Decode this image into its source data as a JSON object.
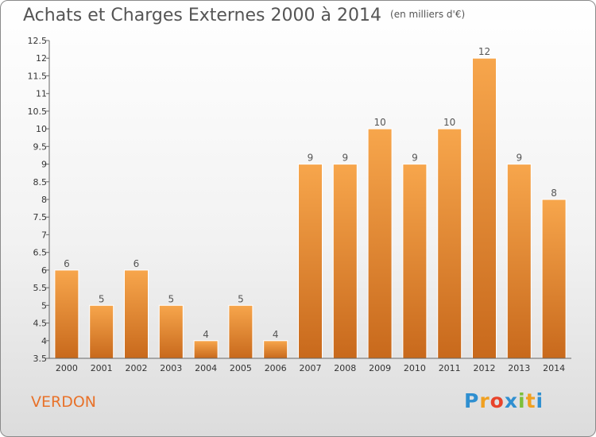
{
  "title": "Achats et Charges Externes 2000 à 2014",
  "unit_note": "(en milliers d'€)",
  "commune": "VERDON",
  "logo": {
    "letters": [
      "P",
      "r",
      "o",
      "x",
      "i",
      "t",
      "i"
    ],
    "colors": [
      "#2f8fd0",
      "#f0a020",
      "#e8432a",
      "#2f8fd0",
      "#7cbf3a",
      "#f0a020",
      "#2f8fd0"
    ]
  },
  "colors": {
    "bar_light": "#f7a64c",
    "bar_dark": "#c8691c",
    "text": "#555555",
    "accent": "#e8722a"
  },
  "chart_data": {
    "type": "bar",
    "categories": [
      "2000",
      "2001",
      "2002",
      "2003",
      "2004",
      "2005",
      "2006",
      "2007",
      "2008",
      "2009",
      "2010",
      "2011",
      "2012",
      "2013",
      "2014"
    ],
    "values": [
      6,
      5,
      6,
      5,
      4,
      5,
      4,
      9,
      9,
      10,
      9,
      10,
      12,
      9,
      8
    ],
    "data_labels": [
      "6",
      "5",
      "6",
      "5",
      "4",
      "5",
      "4",
      "9",
      "9",
      "10",
      "9",
      "10",
      "12",
      "9",
      "8"
    ],
    "ylim": [
      3.5,
      12.5
    ],
    "yticks": [
      3.5,
      4,
      4.5,
      5,
      5.5,
      6,
      6.5,
      7,
      7.5,
      8,
      8.5,
      9,
      9.5,
      10,
      10.5,
      11,
      11.5,
      12,
      12.5
    ],
    "ytick_labels": [
      "3.5",
      "4",
      "4.5",
      "5",
      "5.5",
      "6",
      "6.5",
      "7",
      "7.5",
      "8",
      "8.5",
      "9",
      "9.5",
      "10",
      "10.5",
      "11",
      "11.5",
      "12",
      "12.5"
    ],
    "grid": false,
    "xlabel": "",
    "ylabel": ""
  }
}
